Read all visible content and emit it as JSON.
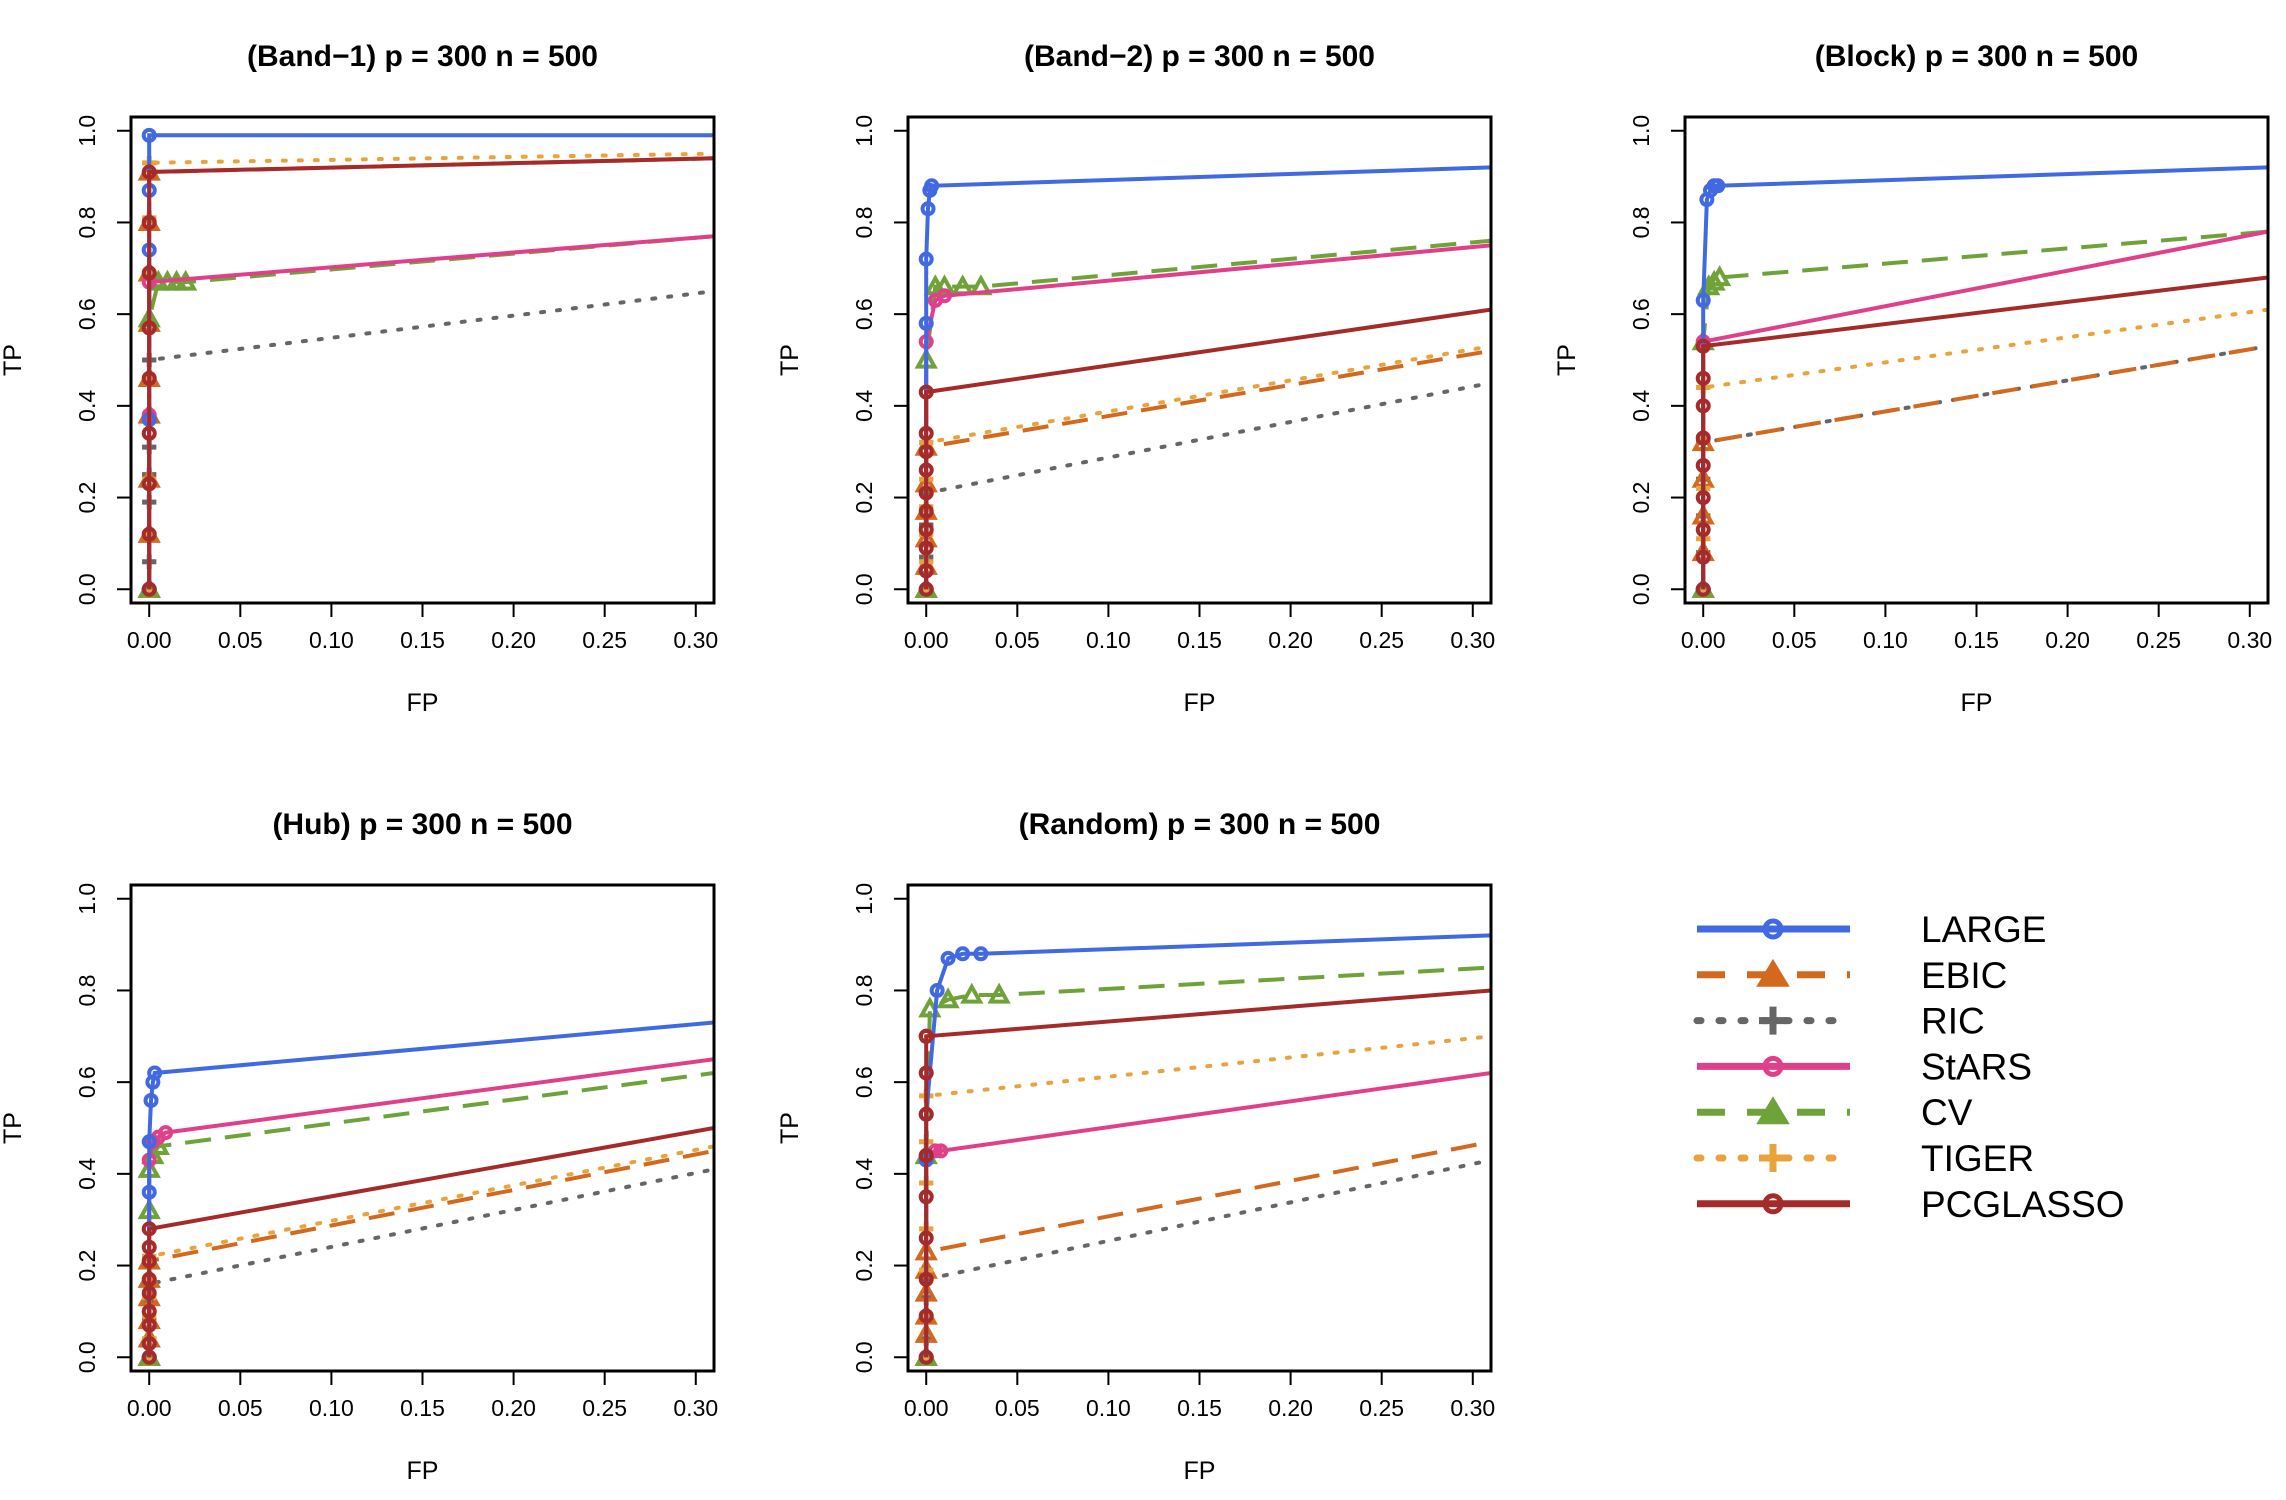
{
  "figure_title": "",
  "legend": {
    "position": "right",
    "entries": [
      {
        "name": "LARGE",
        "color": "#4169E1",
        "dash": "solid",
        "marker": "circle"
      },
      {
        "name": "EBIC",
        "color": "#D2691E",
        "dash": "dashed",
        "marker": "triangle"
      },
      {
        "name": "RIC",
        "color": "#666666",
        "dash": "dotted",
        "marker": "plus"
      },
      {
        "name": "StARS",
        "color": "#E0408A",
        "dash": "solid",
        "marker": "circle"
      },
      {
        "name": "CV",
        "color": "#6FA33A",
        "dash": "dashed",
        "marker": "triangle"
      },
      {
        "name": "TIGER",
        "color": "#E8A33D",
        "dash": "dotted",
        "marker": "plus"
      },
      {
        "name": "PCGLASSO",
        "color": "#A52A2A",
        "dash": "solid",
        "marker": "circle"
      }
    ]
  },
  "chart_data": [
    {
      "type": "line",
      "title": "(Band−1)  p = 300  n = 500",
      "xlabel": "FP",
      "ylabel": "TP",
      "xlim": [
        -0.01,
        0.31
      ],
      "ylim": [
        -0.03,
        1.03
      ],
      "xticks": [
        "0.00",
        "0.05",
        "0.10",
        "0.15",
        "0.20",
        "0.25",
        "0.30"
      ],
      "yticks": [
        "0.0",
        "0.2",
        "0.4",
        "0.6",
        "0.8",
        "1.0"
      ],
      "series": [
        {
          "name": "RIC",
          "x": [
            0,
            0,
            0,
            0,
            0,
            0,
            0,
            0.31
          ],
          "y": [
            0,
            0.06,
            0.12,
            0.19,
            0.25,
            0.31,
            0.5,
            0.65
          ]
        },
        {
          "name": "EBIC",
          "x": [
            0,
            0,
            0,
            0,
            0,
            0,
            0,
            0,
            0,
            0.31
          ],
          "y": [
            0,
            0.12,
            0.24,
            0.38,
            0.46,
            0.58,
            0.69,
            0.8,
            0.91,
            0.94
          ]
        },
        {
          "name": "TIGER",
          "x": [
            0,
            0,
            0,
            0,
            0,
            0,
            0,
            0,
            0,
            0.31
          ],
          "y": [
            0,
            0.12,
            0.24,
            0.38,
            0.46,
            0.58,
            0.69,
            0.81,
            0.93,
            0.95
          ]
        },
        {
          "name": "CV",
          "x": [
            0,
            0,
            0.005,
            0.01,
            0.015,
            0.02,
            0.31
          ],
          "y": [
            0,
            0.59,
            0.67,
            0.67,
            0.67,
            0.67,
            0.77
          ]
        },
        {
          "name": "StARS",
          "x": [
            0,
            0,
            0,
            0.31
          ],
          "y": [
            0,
            0.38,
            0.67,
            0.77
          ]
        },
        {
          "name": "LARGE",
          "x": [
            0,
            0,
            0,
            0,
            0,
            0.31
          ],
          "y": [
            0,
            0.37,
            0.74,
            0.87,
            0.99,
            0.99
          ]
        },
        {
          "name": "PCGLASSO",
          "x": [
            0,
            0,
            0,
            0,
            0,
            0,
            0,
            0,
            0,
            0.31
          ],
          "y": [
            0,
            0.12,
            0.23,
            0.34,
            0.46,
            0.57,
            0.69,
            0.8,
            0.91,
            0.94
          ]
        }
      ]
    },
    {
      "type": "line",
      "title": "(Band−2)  p = 300  n = 500",
      "xlabel": "FP",
      "ylabel": "TP",
      "xlim": [
        -0.01,
        0.31
      ],
      "ylim": [
        -0.03,
        1.03
      ],
      "xticks": [
        "0.00",
        "0.05",
        "0.10",
        "0.15",
        "0.20",
        "0.25",
        "0.30"
      ],
      "yticks": [
        "0.0",
        "0.2",
        "0.4",
        "0.6",
        "0.8",
        "1.0"
      ],
      "series": [
        {
          "name": "RIC",
          "x": [
            0,
            0,
            0,
            0,
            0.31
          ],
          "y": [
            0,
            0.07,
            0.14,
            0.21,
            0.45
          ]
        },
        {
          "name": "EBIC",
          "x": [
            0,
            0,
            0,
            0,
            0,
            0,
            0.31
          ],
          "y": [
            0,
            0.05,
            0.11,
            0.17,
            0.23,
            0.31,
            0.52
          ]
        },
        {
          "name": "TIGER",
          "x": [
            0,
            0,
            0,
            0,
            0,
            0,
            0.31
          ],
          "y": [
            0,
            0.06,
            0.12,
            0.18,
            0.24,
            0.32,
            0.53
          ]
        },
        {
          "name": "CV",
          "x": [
            0,
            0,
            0.005,
            0.01,
            0.02,
            0.03,
            0.31
          ],
          "y": [
            0,
            0.5,
            0.66,
            0.66,
            0.66,
            0.66,
            0.76
          ]
        },
        {
          "name": "StARS",
          "x": [
            0,
            0,
            0.005,
            0.01,
            0.31
          ],
          "y": [
            0,
            0.54,
            0.63,
            0.64,
            0.75
          ]
        },
        {
          "name": "LARGE",
          "x": [
            0,
            0,
            0,
            0.001,
            0.002,
            0.003,
            0.31
          ],
          "y": [
            0,
            0.58,
            0.72,
            0.83,
            0.87,
            0.88,
            0.92
          ]
        },
        {
          "name": "PCGLASSO",
          "x": [
            0,
            0,
            0,
            0,
            0,
            0,
            0,
            0,
            0,
            0,
            0.31
          ],
          "y": [
            0,
            0.04,
            0.09,
            0.13,
            0.17,
            0.21,
            0.26,
            0.3,
            0.34,
            0.43,
            0.61
          ]
        }
      ]
    },
    {
      "type": "line",
      "title": "(Block)  p = 300  n = 500",
      "xlabel": "FP",
      "ylabel": "TP",
      "xlim": [
        -0.01,
        0.31
      ],
      "ylim": [
        -0.03,
        1.03
      ],
      "xticks": [
        "0.00",
        "0.05",
        "0.10",
        "0.15",
        "0.20",
        "0.25",
        "0.30"
      ],
      "yticks": [
        "0.0",
        "0.2",
        "0.4",
        "0.6",
        "0.8",
        "1.0"
      ],
      "series": [
        {
          "name": "RIC",
          "x": [
            0,
            0,
            0,
            0,
            0,
            0.31
          ],
          "y": [
            0,
            0.08,
            0.16,
            0.24,
            0.32,
            0.53
          ]
        },
        {
          "name": "EBIC",
          "x": [
            0,
            0,
            0,
            0,
            0,
            0.31
          ],
          "y": [
            0,
            0.08,
            0.16,
            0.24,
            0.32,
            0.53
          ]
        },
        {
          "name": "TIGER",
          "x": [
            0,
            0,
            0,
            0,
            0,
            0.31
          ],
          "y": [
            0,
            0.11,
            0.22,
            0.33,
            0.44,
            0.61
          ]
        },
        {
          "name": "CV",
          "x": [
            0,
            0,
            0.003,
            0.006,
            0.009,
            0.31
          ],
          "y": [
            0,
            0.54,
            0.66,
            0.67,
            0.68,
            0.78
          ]
        },
        {
          "name": "StARS",
          "x": [
            0,
            0,
            0.31
          ],
          "y": [
            0,
            0.54,
            0.78
          ]
        },
        {
          "name": "LARGE",
          "x": [
            0,
            0,
            0.002,
            0.004,
            0.006,
            0.008,
            0.31
          ],
          "y": [
            0,
            0.63,
            0.85,
            0.87,
            0.88,
            0.88,
            0.92
          ]
        },
        {
          "name": "PCGLASSO",
          "x": [
            0,
            0,
            0,
            0,
            0,
            0,
            0,
            0,
            0,
            0.31
          ],
          "y": [
            0,
            0.07,
            0.13,
            0.2,
            0.27,
            0.33,
            0.4,
            0.46,
            0.53,
            0.68
          ]
        }
      ]
    },
    {
      "type": "line",
      "title": "(Hub)  p = 300  n = 500",
      "xlabel": "FP",
      "ylabel": "TP",
      "xlim": [
        -0.01,
        0.31
      ],
      "ylim": [
        -0.03,
        1.03
      ],
      "xticks": [
        "0.00",
        "0.05",
        "0.10",
        "0.15",
        "0.20",
        "0.25",
        "0.30"
      ],
      "yticks": [
        "0.0",
        "0.2",
        "0.4",
        "0.6",
        "0.8",
        "1.0"
      ],
      "series": [
        {
          "name": "RIC",
          "x": [
            0,
            0,
            0,
            0,
            0,
            0.31
          ],
          "y": [
            0,
            0.04,
            0.08,
            0.12,
            0.16,
            0.41
          ]
        },
        {
          "name": "EBIC",
          "x": [
            0,
            0,
            0,
            0,
            0,
            0,
            0.31
          ],
          "y": [
            0,
            0.04,
            0.08,
            0.13,
            0.17,
            0.21,
            0.45
          ]
        },
        {
          "name": "TIGER",
          "x": [
            0,
            0,
            0,
            0,
            0,
            0,
            0.31
          ],
          "y": [
            0,
            0.04,
            0.09,
            0.13,
            0.17,
            0.22,
            0.46
          ]
        },
        {
          "name": "CV",
          "x": [
            0,
            0,
            0,
            0.002,
            0.005,
            0.31
          ],
          "y": [
            0,
            0.32,
            0.41,
            0.44,
            0.46,
            0.62
          ]
        },
        {
          "name": "StARS",
          "x": [
            0,
            0,
            0.002,
            0.005,
            0.009,
            0.31
          ],
          "y": [
            0,
            0.43,
            0.47,
            0.48,
            0.49,
            0.65
          ]
        },
        {
          "name": "LARGE",
          "x": [
            0,
            0,
            0,
            0.001,
            0.002,
            0.003,
            0.31
          ],
          "y": [
            0,
            0.36,
            0.47,
            0.56,
            0.6,
            0.62,
            0.73
          ]
        },
        {
          "name": "PCGLASSO",
          "x": [
            0,
            0,
            0,
            0,
            0,
            0,
            0,
            0,
            0,
            0.31
          ],
          "y": [
            0,
            0.03,
            0.07,
            0.1,
            0.14,
            0.17,
            0.21,
            0.24,
            0.28,
            0.5
          ]
        }
      ]
    },
    {
      "type": "line",
      "title": "(Random)  p = 300  n = 500",
      "xlabel": "FP",
      "ylabel": "TP",
      "xlim": [
        -0.01,
        0.31
      ],
      "ylim": [
        -0.03,
        1.03
      ],
      "xticks": [
        "0.00",
        "0.05",
        "0.10",
        "0.15",
        "0.20",
        "0.25",
        "0.30"
      ],
      "yticks": [
        "0.0",
        "0.2",
        "0.4",
        "0.6",
        "0.8",
        "1.0"
      ],
      "series": [
        {
          "name": "RIC",
          "x": [
            0,
            0,
            0,
            0,
            0,
            0.31
          ],
          "y": [
            0,
            0.04,
            0.09,
            0.13,
            0.17,
            0.43
          ]
        },
        {
          "name": "EBIC",
          "x": [
            0,
            0,
            0,
            0,
            0,
            0,
            0.31
          ],
          "y": [
            0,
            0.05,
            0.09,
            0.14,
            0.19,
            0.23,
            0.47
          ]
        },
        {
          "name": "TIGER",
          "x": [
            0,
            0,
            0,
            0,
            0,
            0,
            0,
            0.31
          ],
          "y": [
            0,
            0.09,
            0.19,
            0.28,
            0.38,
            0.47,
            0.57,
            0.7
          ]
        },
        {
          "name": "CV",
          "x": [
            0,
            0,
            0.002,
            0.012,
            0.025,
            0.04,
            0.31
          ],
          "y": [
            0,
            0.44,
            0.76,
            0.78,
            0.79,
            0.79,
            0.85
          ]
        },
        {
          "name": "StARS",
          "x": [
            0,
            0,
            0.005,
            0.008,
            0.31
          ],
          "y": [
            0,
            0.44,
            0.45,
            0.45,
            0.62
          ]
        },
        {
          "name": "LARGE",
          "x": [
            0,
            0,
            0,
            0.006,
            0.012,
            0.02,
            0.03,
            0.31
          ],
          "y": [
            0,
            0.43,
            0.53,
            0.8,
            0.87,
            0.88,
            0.88,
            0.92
          ]
        },
        {
          "name": "PCGLASSO",
          "x": [
            0,
            0,
            0,
            0,
            0,
            0,
            0,
            0,
            0,
            0,
            0.31
          ],
          "y": [
            0,
            0.09,
            0.17,
            0.26,
            0.35,
            0.44,
            0.53,
            0.62,
            0.7,
            0.7,
            0.8
          ]
        }
      ]
    }
  ]
}
